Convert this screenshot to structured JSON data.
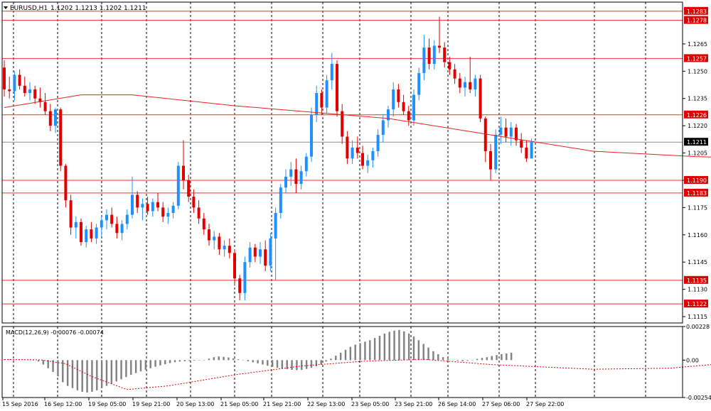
{
  "header": {
    "symbol": "EURUSD,H1",
    "ohlc": "1.1202 1.1213 1.1202 1.1211"
  },
  "colors": {
    "background": "#ffffff",
    "grid": "#000000",
    "bull": "#1e90ff",
    "bear": "#e00000",
    "level_line": "#ff2a2a",
    "current_line": "#8c8c8c",
    "ma_line": "#e82020",
    "macd_hist": "#808080",
    "macd_signal": "#e00000"
  },
  "chart_data": {
    "type": "candlestick",
    "price_axis": {
      "range": [
        1.11115,
        1.1288
      ],
      "ticks": [
        "1.1115",
        "1.1130",
        "1.1145",
        "1.1160",
        "1.1175",
        "1.1190",
        "1.1205",
        "1.1220",
        "1.1235",
        "1.1250",
        "1.1265"
      ]
    },
    "current_price": "1.1211",
    "levels": [
      "1.1283",
      "1.1278",
      "1.1257",
      "1.1226",
      "1.1190",
      "1.1183",
      "1.1135",
      "1.1122"
    ],
    "time_labels": [
      "15 Sep 2016",
      "16 Sep 12:00",
      "19 Sep 05:00",
      "19 Sep 21:00",
      "20 Sep 13:00",
      "21 Sep 05:00",
      "21 Sep 21:00",
      "22 Sep 13:00",
      "23 Sep 05:00",
      "23 Sep 21:00",
      "26 Sep 14:00",
      "27 Sep 06:00",
      "27 Sep 22:00"
    ],
    "ohlc": [
      [
        1.1252,
        1.1256,
        1.1236,
        1.124
      ],
      [
        1.124,
        1.1247,
        1.1235,
        1.1239
      ],
      [
        1.1239,
        1.125,
        1.1234,
        1.1248
      ],
      [
        1.1248,
        1.1251,
        1.124,
        1.1242
      ],
      [
        1.1242,
        1.1247,
        1.1236,
        1.1238
      ],
      [
        1.1238,
        1.1244,
        1.1234,
        1.124
      ],
      [
        1.124,
        1.1242,
        1.1232,
        1.1235
      ],
      [
        1.1235,
        1.1241,
        1.123,
        1.1233
      ],
      [
        1.1233,
        1.1238,
        1.1226,
        1.1228
      ],
      [
        1.1228,
        1.1232,
        1.1217,
        1.122
      ],
      [
        1.122,
        1.123,
        1.1216,
        1.1229
      ],
      [
        1.1229,
        1.123,
        1.1195,
        1.1198
      ],
      [
        1.1198,
        1.1199,
        1.1175,
        1.1179
      ],
      [
        1.1179,
        1.1182,
        1.116,
        1.1164
      ],
      [
        1.1164,
        1.117,
        1.1158,
        1.1167
      ],
      [
        1.1167,
        1.1169,
        1.1154,
        1.1156
      ],
      [
        1.1156,
        1.1165,
        1.1153,
        1.1163
      ],
      [
        1.1163,
        1.1167,
        1.1156,
        1.1158
      ],
      [
        1.1158,
        1.1166,
        1.1155,
        1.1164
      ],
      [
        1.1164,
        1.117,
        1.1159,
        1.1168
      ],
      [
        1.1168,
        1.1174,
        1.1163,
        1.1171
      ],
      [
        1.1171,
        1.1175,
        1.1164,
        1.1166
      ],
      [
        1.1166,
        1.117,
        1.1158,
        1.1161
      ],
      [
        1.1161,
        1.1168,
        1.1157,
        1.1166
      ],
      [
        1.1166,
        1.1174,
        1.1163,
        1.1171
      ],
      [
        1.1171,
        1.1192,
        1.1169,
        1.1182
      ],
      [
        1.1182,
        1.1184,
        1.1172,
        1.1175
      ],
      [
        1.1175,
        1.118,
        1.1168,
        1.1177
      ],
      [
        1.1177,
        1.1181,
        1.1171,
        1.1173
      ],
      [
        1.1173,
        1.118,
        1.117,
        1.1178
      ],
      [
        1.1178,
        1.1183,
        1.1173,
        1.1175
      ],
      [
        1.1175,
        1.1178,
        1.1167,
        1.117
      ],
      [
        1.117,
        1.1175,
        1.1166,
        1.1172
      ],
      [
        1.1172,
        1.1178,
        1.1169,
        1.1176
      ],
      [
        1.1176,
        1.12,
        1.1174,
        1.1198
      ],
      [
        1.1198,
        1.1212,
        1.1185,
        1.119
      ],
      [
        1.119,
        1.1193,
        1.1178,
        1.1181
      ],
      [
        1.1181,
        1.1185,
        1.1172,
        1.1175
      ],
      [
        1.1175,
        1.1179,
        1.1166,
        1.1169
      ],
      [
        1.1169,
        1.1172,
        1.116,
        1.1163
      ],
      [
        1.1163,
        1.1166,
        1.1154,
        1.1157
      ],
      [
        1.1157,
        1.1162,
        1.1152,
        1.1159
      ],
      [
        1.1159,
        1.1161,
        1.1149,
        1.1152
      ],
      [
        1.1152,
        1.1157,
        1.1148,
        1.1154
      ],
      [
        1.1154,
        1.1158,
        1.1147,
        1.115
      ],
      [
        1.115,
        1.1152,
        1.1132,
        1.1136
      ],
      [
        1.1136,
        1.1138,
        1.1124,
        1.1128
      ],
      [
        1.1128,
        1.1148,
        1.1124,
        1.1145
      ],
      [
        1.1145,
        1.1156,
        1.1142,
        1.1153
      ],
      [
        1.1153,
        1.1155,
        1.1145,
        1.1148
      ],
      [
        1.1148,
        1.1156,
        1.1144,
        1.1152
      ],
      [
        1.1152,
        1.1157,
        1.114,
        1.1143
      ],
      [
        1.1143,
        1.1161,
        1.114,
        1.1158
      ],
      [
        1.1158,
        1.1175,
        1.1135,
        1.1172
      ],
      [
        1.1172,
        1.1188,
        1.1169,
        1.1186
      ],
      [
        1.1186,
        1.1196,
        1.1183,
        1.1192
      ],
      [
        1.1192,
        1.12,
        1.1187,
        1.1196
      ],
      [
        1.1196,
        1.1202,
        1.1183,
        1.1188
      ],
      [
        1.1188,
        1.1198,
        1.1185,
        1.1195
      ],
      [
        1.1195,
        1.1205,
        1.1192,
        1.1203
      ],
      [
        1.1203,
        1.123,
        1.12,
        1.1226
      ],
      [
        1.1226,
        1.1242,
        1.1222,
        1.1238
      ],
      [
        1.1238,
        1.124,
        1.1226,
        1.123
      ],
      [
        1.123,
        1.1248,
        1.1227,
        1.1245
      ],
      [
        1.1245,
        1.126,
        1.124,
        1.1254
      ],
      [
        1.1254,
        1.1256,
        1.1225,
        1.1228
      ],
      [
        1.1228,
        1.1232,
        1.121,
        1.1214
      ],
      [
        1.1214,
        1.1217,
        1.1199,
        1.1202
      ],
      [
        1.1202,
        1.1212,
        1.1199,
        1.1208
      ],
      [
        1.1208,
        1.1214,
        1.1202,
        1.1205
      ],
      [
        1.1205,
        1.1209,
        1.1196,
        1.1198
      ],
      [
        1.1198,
        1.1204,
        1.1194,
        1.1201
      ],
      [
        1.1201,
        1.1208,
        1.1197,
        1.1206
      ],
      [
        1.1206,
        1.1218,
        1.1203,
        1.1215
      ],
      [
        1.1215,
        1.1226,
        1.1211,
        1.1223
      ],
      [
        1.1223,
        1.1231,
        1.1219,
        1.1229
      ],
      [
        1.1229,
        1.1244,
        1.1225,
        1.124
      ],
      [
        1.124,
        1.1243,
        1.123,
        1.1233
      ],
      [
        1.1233,
        1.1237,
        1.1226,
        1.1228
      ],
      [
        1.1228,
        1.1231,
        1.122,
        1.1223
      ],
      [
        1.1223,
        1.124,
        1.122,
        1.1237
      ],
      [
        1.1237,
        1.1252,
        1.1234,
        1.1249
      ],
      [
        1.1249,
        1.127,
        1.1245,
        1.1263
      ],
      [
        1.1263,
        1.1268,
        1.1251,
        1.1254
      ],
      [
        1.1254,
        1.1267,
        1.1251,
        1.1264
      ],
      [
        1.1264,
        1.128,
        1.126,
        1.1263
      ],
      [
        1.1263,
        1.1266,
        1.1252,
        1.1255
      ],
      [
        1.1255,
        1.1258,
        1.1248,
        1.1251
      ],
      [
        1.1251,
        1.1254,
        1.1243,
        1.1246
      ],
      [
        1.1246,
        1.1249,
        1.1238,
        1.1241
      ],
      [
        1.1241,
        1.1247,
        1.1236,
        1.1244
      ],
      [
        1.1244,
        1.1258,
        1.1238,
        1.124
      ],
      [
        1.124,
        1.1248,
        1.1236,
        1.1246
      ],
      [
        1.1246,
        1.1248,
        1.1222,
        1.1224
      ],
      [
        1.1224,
        1.1225,
        1.12,
        1.1206
      ],
      [
        1.1206,
        1.121,
        1.119,
        1.1196
      ],
      [
        1.1196,
        1.1218,
        1.1194,
        1.1215
      ],
      [
        1.1215,
        1.1225,
        1.121,
        1.1219
      ],
      [
        1.1219,
        1.1224,
        1.1211,
        1.1214
      ],
      [
        1.1214,
        1.1222,
        1.1209,
        1.1219
      ],
      [
        1.1219,
        1.1221,
        1.1209,
        1.1212
      ],
      [
        1.1212,
        1.1216,
        1.1205,
        1.1208
      ],
      [
        1.1208,
        1.1212,
        1.12,
        1.1202
      ],
      [
        1.1202,
        1.1213,
        1.1202,
        1.1211
      ]
    ],
    "ma": [
      [
        0,
        1.123
      ],
      [
        15,
        1.1237
      ],
      [
        25,
        1.1237
      ],
      [
        45,
        1.1231
      ],
      [
        75,
        1.1224
      ],
      [
        95,
        1.1215
      ],
      [
        115,
        1.1206
      ],
      [
        135,
        1.1203
      ],
      [
        165,
        1.1201
      ],
      [
        205,
        1.12
      ],
      [
        225,
        1.1201
      ],
      [
        250,
        1.1202
      ],
      [
        285,
        1.1203
      ],
      [
        300,
        1.1204
      ],
      [
        320,
        1.1204
      ],
      [
        350,
        1.1203
      ],
      [
        378,
        1.1201
      ]
    ],
    "macd": {
      "label": "MACD(12,26,9) -0.00076 -0.00074",
      "range": [
        -0.00254,
        0.00228
      ],
      "ticks": [
        "0.00228",
        "0.00",
        "-0.00254"
      ],
      "histogram": [
        5e-05,
        5e-05,
        4e-05,
        4e-05,
        3e-05,
        2e-05,
        0.0,
        -0.0001,
        -0.0003,
        -0.00055,
        -0.0008,
        -0.0011,
        -0.0015,
        -0.00175,
        -0.0019,
        -0.00205,
        -0.00215,
        -0.0022,
        -0.00215,
        -0.00205,
        -0.0019,
        -0.00175,
        -0.0016,
        -0.00145,
        -0.0013,
        -0.00115,
        -0.001,
        -0.00088,
        -0.00076,
        -0.00065,
        -0.00055,
        -0.00045,
        -0.00036,
        -0.00028,
        -0.0002,
        -0.00014,
        -0.0001,
        -8e-05,
        -6e-05,
        -4e-05,
        -2e-05,
        0.0,
        0.0001,
        0.0002,
        0.00025,
        0.00022,
        0.00018,
        0.00012,
        5e-05,
        -2e-05,
        -8e-05,
        -0.00015,
        -0.00022,
        -0.0003,
        -0.00038,
        -0.00046,
        -0.00052,
        -0.00058,
        -0.00062,
        -0.00066,
        -0.00068,
        -0.00066,
        -0.0006,
        -0.00052,
        -0.00042,
        -0.0003,
        -0.0001,
        0.0001,
        0.0003,
        0.0005,
        0.0007,
        0.0009,
        0.00105,
        0.00115,
        0.00125,
        0.00135,
        0.0015,
        0.00165,
        0.0018,
        0.00192,
        0.002,
        0.00205,
        0.00195,
        0.0018,
        0.0016,
        0.00135,
        0.0011,
        0.00085,
        0.0006,
        0.0004,
        0.0002,
        0.0001,
        2e-05,
        -5e-05,
        -8e-05,
        -5e-05,
        0.0,
        8e-05,
        0.00015,
        0.0002,
        0.00028,
        0.00034,
        0.0004,
        0.00045,
        0.0005
      ],
      "signal": [
        [
          0,
          4e-05
        ],
        [
          7,
          2e-05
        ],
        [
          12,
          -0.00025
        ],
        [
          17,
          -0.0011
        ],
        [
          24,
          -0.002
        ],
        [
          32,
          -0.00175
        ],
        [
          45,
          -0.001
        ],
        [
          58,
          -0.0004
        ],
        [
          70,
          -8e-05
        ],
        [
          82,
          5e-05
        ],
        [
          95,
          -0.0003
        ],
        [
          115,
          -0.00062
        ],
        [
          130,
          -0.00055
        ],
        [
          145,
          -0.0001
        ],
        [
          160,
          0.0008
        ],
        [
          175,
          0.0016
        ],
        [
          183,
          0.002
        ],
        [
          192,
          0.0016
        ],
        [
          210,
          0.0006
        ],
        [
          225,
          0.0
        ],
        [
          245,
          0.0002
        ],
        [
          265,
          0.0005
        ],
        [
          290,
          0.0004
        ],
        [
          305,
          0.0006
        ],
        [
          318,
          0.0005
        ],
        [
          335,
          0.00015
        ],
        [
          350,
          -0.0004
        ],
        [
          360,
          -0.0007
        ],
        [
          378,
          -0.00075
        ]
      ]
    }
  }
}
